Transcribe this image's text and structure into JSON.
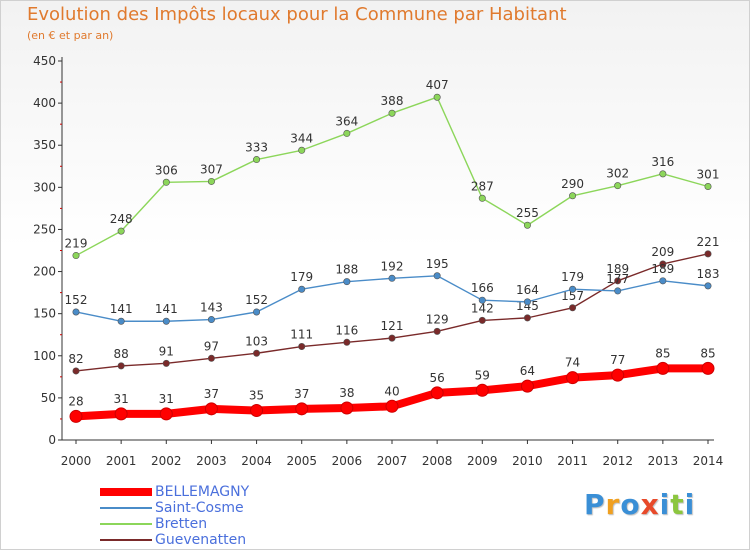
{
  "header": {
    "title": "Evolution des Impôts locaux pour la Commune par Habitant",
    "subtitle": "(en € et par an)"
  },
  "logo": {
    "text": "Proxiti",
    "colors": [
      "#3a8fd6",
      "#f0a020",
      "#3a8fd6",
      "#e84a2a",
      "#3a8fd6",
      "#8cc63f",
      "#3a8fd6"
    ]
  },
  "chart_data": {
    "type": "line",
    "x": [
      2000,
      2001,
      2002,
      2003,
      2004,
      2005,
      2006,
      2007,
      2008,
      2009,
      2010,
      2011,
      2012,
      2013,
      2014
    ],
    "ylim": [
      0,
      450
    ],
    "yticks": [
      0,
      50,
      100,
      150,
      200,
      250,
      300,
      350,
      400,
      450
    ],
    "grid": false,
    "legend_position": "bottom-left",
    "series": [
      {
        "name": "BELLEMAGNY",
        "color": "#ff0000",
        "values": [
          28,
          31,
          31,
          37,
          35,
          37,
          38,
          40,
          56,
          59,
          64,
          74,
          77,
          85,
          85
        ]
      },
      {
        "name": "Saint-Cosme",
        "color": "#4a8cc8",
        "values": [
          152,
          141,
          141,
          143,
          152,
          179,
          188,
          192,
          195,
          166,
          164,
          179,
          177,
          189,
          183
        ]
      },
      {
        "name": "Bretten",
        "color": "#8cd65a",
        "values": [
          219,
          248,
          306,
          307,
          333,
          344,
          364,
          388,
          407,
          287,
          255,
          290,
          302,
          316,
          301
        ]
      },
      {
        "name": "Guevenatten",
        "color": "#7a2a2a",
        "values": [
          82,
          88,
          91,
          97,
          103,
          111,
          116,
          121,
          129,
          142,
          145,
          157,
          189,
          209,
          221
        ]
      }
    ]
  }
}
